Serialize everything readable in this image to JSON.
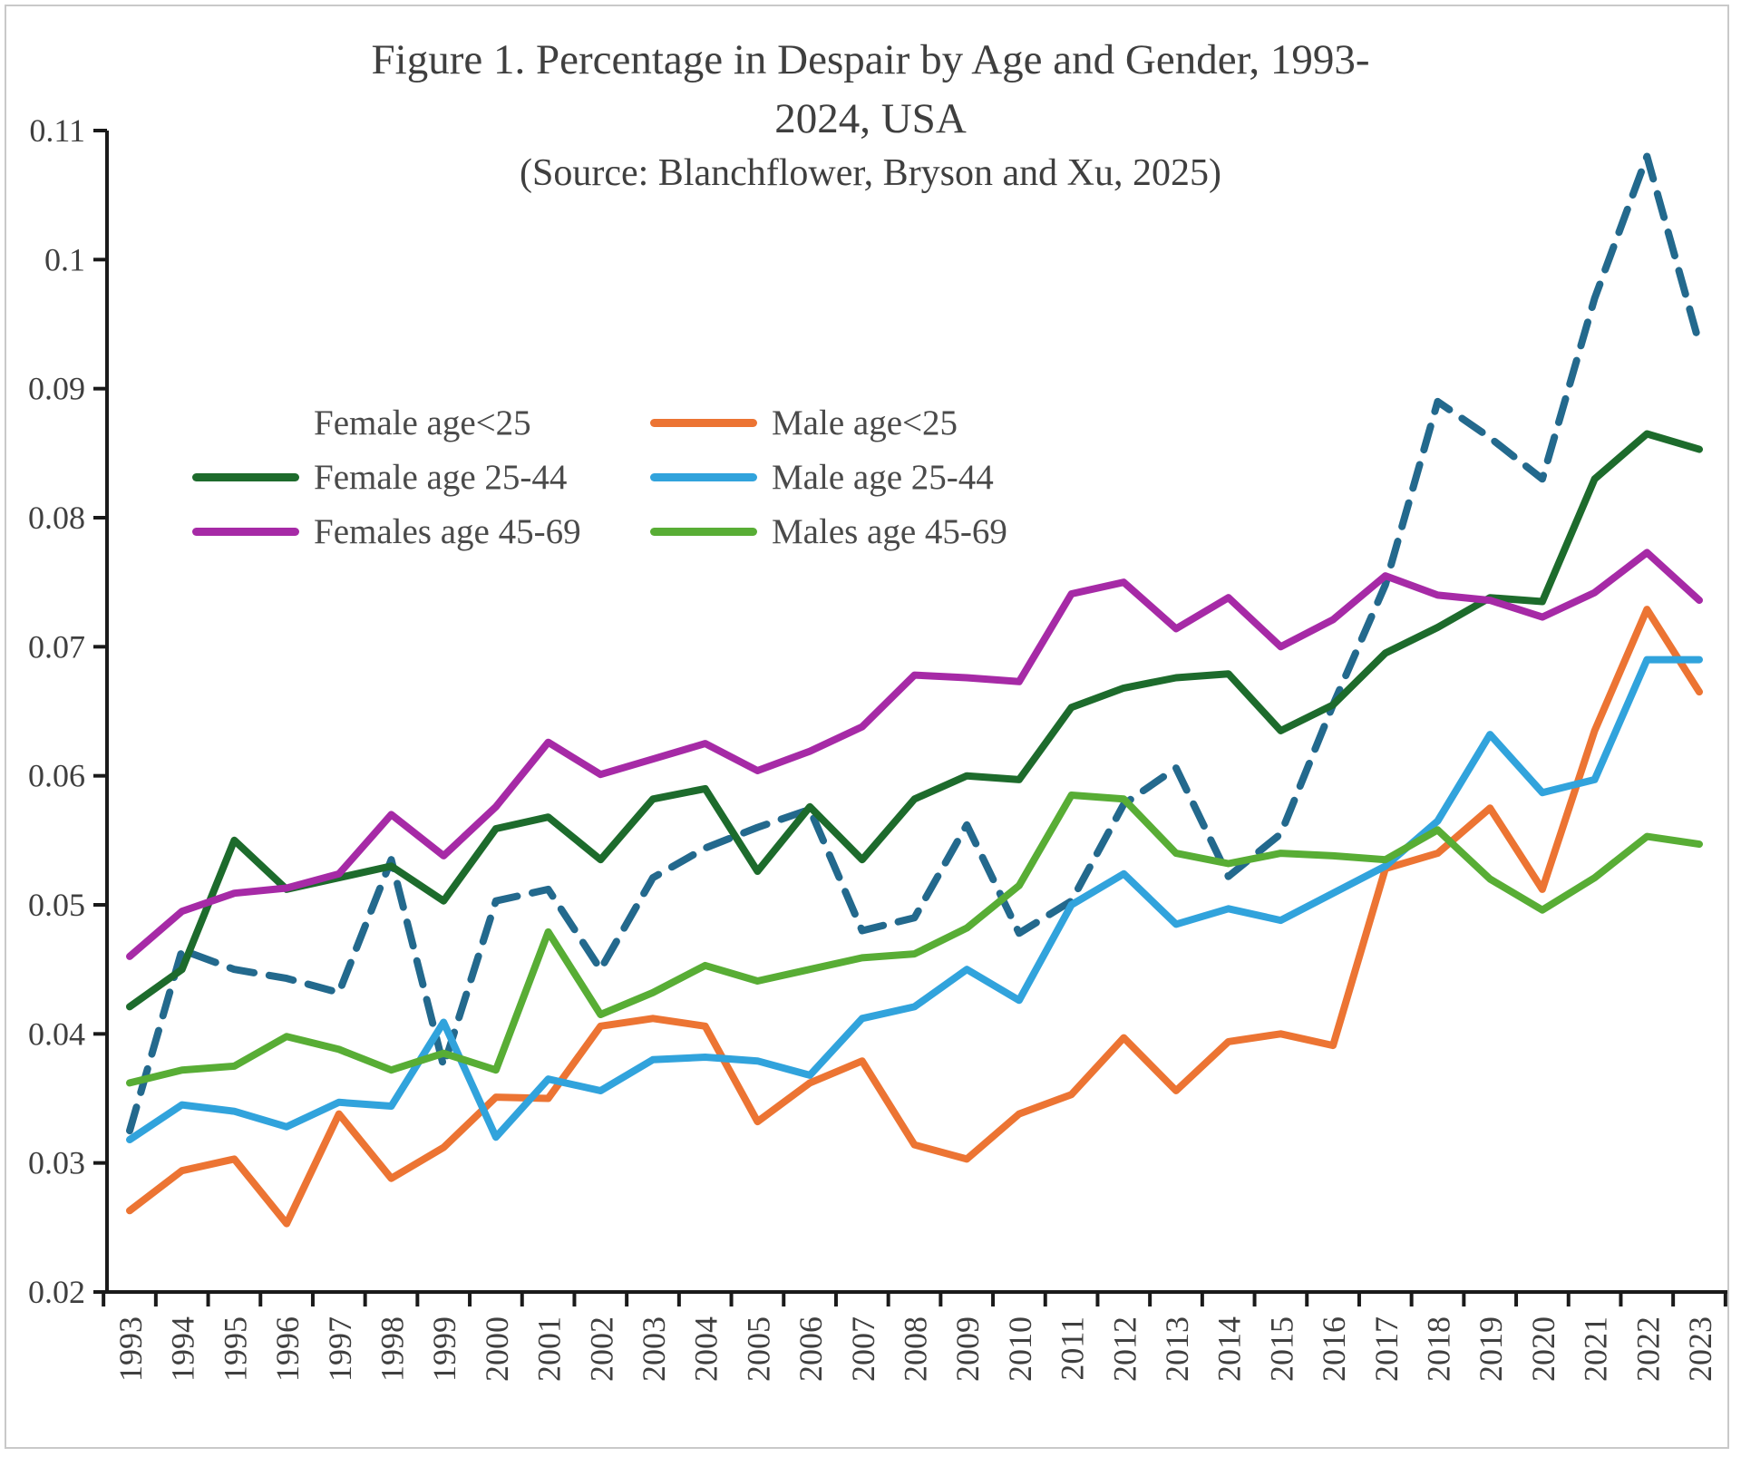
{
  "title": {
    "line1": "Figure 1.  Percentage in Despair by Age and Gender, 1993-",
    "line2": "2024, USA",
    "source": "(Source: Blanchflower, Bryson and Xu, 2025)"
  },
  "legend": {
    "position": "inside-top-left",
    "items": [
      {
        "label": "Female age<25",
        "color": "#23698D",
        "dashed": true
      },
      {
        "label": "Male age<25",
        "color": "#EC7433",
        "dashed": false
      },
      {
        "label": "Female age 25-44",
        "color": "#1D6B2C",
        "dashed": false
      },
      {
        "label": "Male age 25-44",
        "color": "#31A3DC",
        "dashed": false
      },
      {
        "label": "Females age 45-69",
        "color": "#A62AA6",
        "dashed": false
      },
      {
        "label": "Males age 45-69",
        "color": "#58AD35",
        "dashed": false
      }
    ]
  },
  "chart_data": {
    "type": "line",
    "title": "Figure 1. Percentage in Despair by Age and Gender, 1993-2024, USA",
    "xlabel": "",
    "ylabel": "",
    "ylim": [
      0.02,
      0.11
    ],
    "ytick_step": 0.01,
    "ytick_labels": [
      "0.11",
      "0.1",
      "0.09",
      "0.08",
      "0.07",
      "0.06",
      "0.05",
      "0.04",
      "0.03",
      "0.02"
    ],
    "grid": false,
    "x": [
      1993,
      1994,
      1995,
      1996,
      1997,
      1998,
      1999,
      2000,
      2001,
      2002,
      2003,
      2004,
      2005,
      2006,
      2007,
      2008,
      2009,
      2010,
      2011,
      2012,
      2013,
      2014,
      2015,
      2016,
      2017,
      2018,
      2019,
      2020,
      2021,
      2022,
      2023
    ],
    "series": [
      {
        "name": "Female age<25",
        "color": "#23698D",
        "dashed": true,
        "values": [
          0.0325,
          0.0465,
          0.045,
          0.0443,
          0.0432,
          0.0535,
          0.0375,
          0.0503,
          0.0512,
          0.045,
          0.0521,
          0.0544,
          0.056,
          0.0574,
          0.048,
          0.049,
          0.0562,
          0.0478,
          0.0503,
          0.0578,
          0.0606,
          0.0522,
          0.0555,
          0.0655,
          0.0748,
          0.089,
          0.0862,
          0.083,
          0.097,
          0.108,
          0.0935
        ]
      },
      {
        "name": "Male age<25",
        "color": "#EC7433",
        "dashed": false,
        "values": [
          0.0263,
          0.0294,
          0.0303,
          0.0253,
          0.0338,
          0.0288,
          0.0312,
          0.0351,
          0.035,
          0.0406,
          0.0412,
          0.0406,
          0.0332,
          0.0362,
          0.0379,
          0.0314,
          0.0303,
          0.0338,
          0.0353,
          0.0397,
          0.0356,
          0.0394,
          0.04,
          0.0391,
          0.0528,
          0.054,
          0.0575,
          0.0512,
          0.0635,
          0.0729,
          0.0665
        ]
      },
      {
        "name": "Female age 25-44",
        "color": "#1D6B2C",
        "dashed": false,
        "values": [
          0.0421,
          0.045,
          0.055,
          0.0512,
          0.0521,
          0.053,
          0.0503,
          0.0559,
          0.0568,
          0.0535,
          0.0582,
          0.059,
          0.0526,
          0.0576,
          0.0535,
          0.0582,
          0.06,
          0.0597,
          0.0653,
          0.0668,
          0.0676,
          0.0679,
          0.0635,
          0.0655,
          0.0695,
          0.0715,
          0.0738,
          0.0735,
          0.083,
          0.0865,
          0.0853
        ]
      },
      {
        "name": "Male age 25-44",
        "color": "#31A3DC",
        "dashed": false,
        "values": [
          0.0318,
          0.0345,
          0.034,
          0.0328,
          0.0347,
          0.0344,
          0.0409,
          0.032,
          0.0365,
          0.0356,
          0.038,
          0.0382,
          0.0379,
          0.0368,
          0.0412,
          0.0421,
          0.045,
          0.0426,
          0.05,
          0.0524,
          0.0485,
          0.0497,
          0.0488,
          0.0509,
          0.053,
          0.0565,
          0.0632,
          0.0587,
          0.0597,
          0.069,
          0.069
        ]
      },
      {
        "name": "Females age 45-69",
        "color": "#A62AA6",
        "dashed": false,
        "values": [
          0.046,
          0.0495,
          0.0509,
          0.0513,
          0.0524,
          0.057,
          0.0538,
          0.0576,
          0.0626,
          0.0601,
          0.0613,
          0.0625,
          0.0604,
          0.0619,
          0.0638,
          0.0678,
          0.0676,
          0.0673,
          0.0741,
          0.075,
          0.0714,
          0.0738,
          0.07,
          0.0721,
          0.0755,
          0.074,
          0.0736,
          0.0723,
          0.0742,
          0.0773,
          0.0736
        ]
      },
      {
        "name": "Males age 45-69",
        "color": "#58AD35",
        "dashed": false,
        "values": [
          0.0362,
          0.0372,
          0.0375,
          0.0398,
          0.0388,
          0.0372,
          0.0385,
          0.0372,
          0.0479,
          0.0415,
          0.0432,
          0.0453,
          0.0441,
          0.045,
          0.0459,
          0.0462,
          0.0482,
          0.0515,
          0.0585,
          0.0582,
          0.054,
          0.0532,
          0.054,
          0.0538,
          0.0535,
          0.0558,
          0.052,
          0.0496,
          0.0521,
          0.0553,
          0.0547
        ]
      }
    ]
  },
  "axis_style": {
    "tick_color": "#1a1a1a",
    "label_color": "#3f3f3f"
  }
}
